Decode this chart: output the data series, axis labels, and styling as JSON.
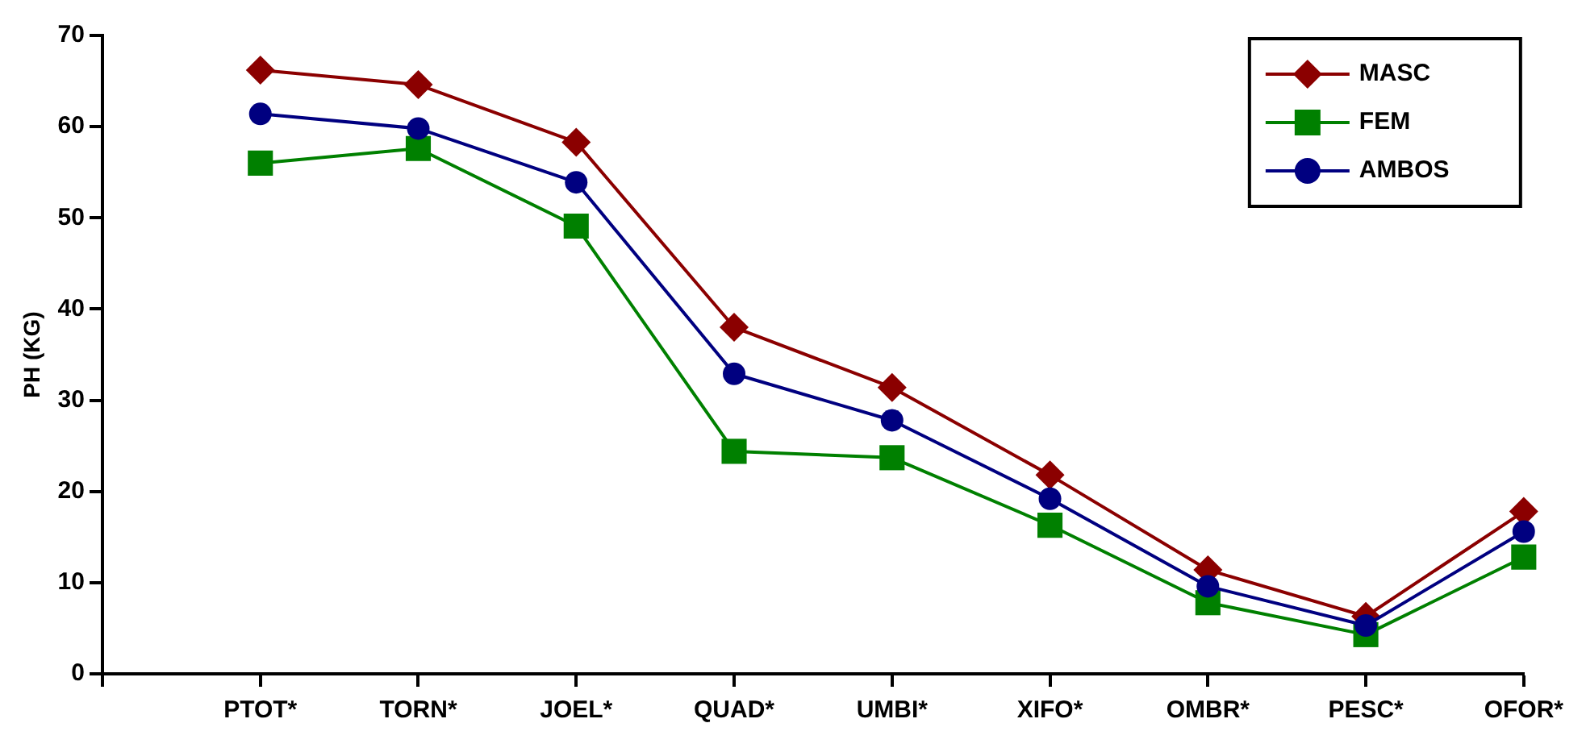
{
  "chart_data": {
    "type": "line",
    "ylabel": "PH (KG)",
    "categories": [
      null,
      "PTOT*",
      "TORN*",
      "JOEL*",
      "QUAD*",
      "UMBI*",
      "XIFO*",
      "OMBR*",
      "PESC*",
      "OFOR*"
    ],
    "series": [
      {
        "name": "MASC",
        "color": "#8b0000",
        "marker": "diamond",
        "values": [
          null,
          66.2,
          64.6,
          58.3,
          38.0,
          31.4,
          21.8,
          11.4,
          6.3,
          17.8
        ]
      },
      {
        "name": "FEM",
        "color": "#008000",
        "marker": "square",
        "values": [
          null,
          56.0,
          57.6,
          49.1,
          24.4,
          23.7,
          16.3,
          7.8,
          4.3,
          12.8
        ]
      },
      {
        "name": "AMBOS",
        "color": "#000080",
        "marker": "circle",
        "values": [
          null,
          61.4,
          59.8,
          53.9,
          32.9,
          27.8,
          19.2,
          9.6,
          5.3,
          15.6
        ]
      }
    ],
    "ylim": [
      0,
      70
    ],
    "yticks": [
      0,
      10,
      20,
      30,
      40,
      50,
      60,
      70
    ],
    "grid": false,
    "legend": "top right",
    "line_style": "solid"
  }
}
